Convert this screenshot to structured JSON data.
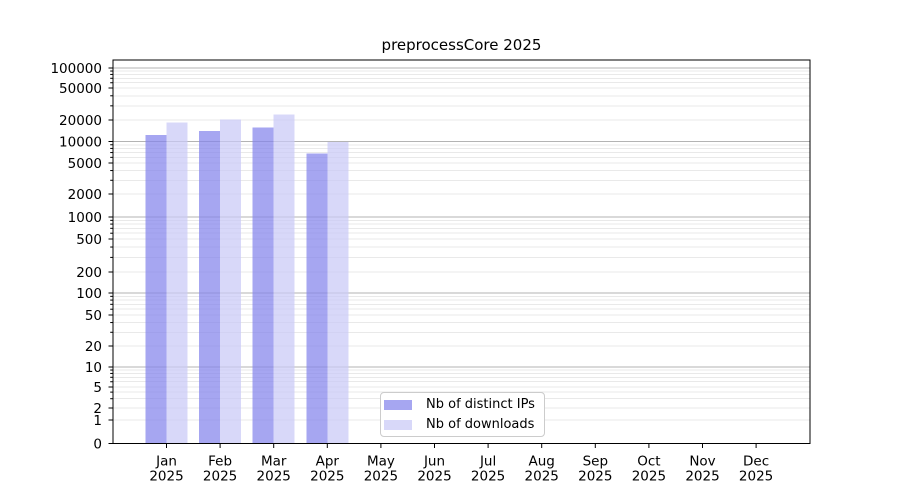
{
  "chart_data": {
    "type": "bar",
    "title": "preprocessCore 2025",
    "months": [
      "Jan",
      "Feb",
      "Mar",
      "Apr",
      "May",
      "Jun",
      "Jul",
      "Aug",
      "Sep",
      "Oct",
      "Nov",
      "Dec"
    ],
    "year": "2025",
    "series": [
      {
        "name": "Nb of distinct IPs",
        "color": "#a9a9f1",
        "fill": "rgba(132,132,235,0.72)",
        "values": [
          12300,
          14000,
          15600,
          6800,
          0,
          0,
          0,
          0,
          0,
          0,
          0,
          0
        ]
      },
      {
        "name": "Nb of downloads",
        "color": "#d9d9f8",
        "fill": "rgba(201,201,247,0.72)",
        "values": [
          18600,
          20200,
          23500,
          9900,
          0,
          0,
          0,
          0,
          0,
          0,
          0,
          0
        ]
      }
    ],
    "y_ticks": [
      0,
      1,
      2,
      5,
      10,
      20,
      50,
      100,
      200,
      500,
      1000,
      2000,
      5000,
      10000,
      20000,
      50000,
      100000
    ],
    "ylim": [
      0,
      100000
    ],
    "yscale": "symlog",
    "grid": "horizontal",
    "legend_position": "lower center",
    "colors": {
      "axis": "#000000",
      "major_grid": "#b3b3b3",
      "minor_grid": "#e9e9e9",
      "background": "#ffffff",
      "legend_border": "#cccccc",
      "text": "#000000"
    }
  }
}
